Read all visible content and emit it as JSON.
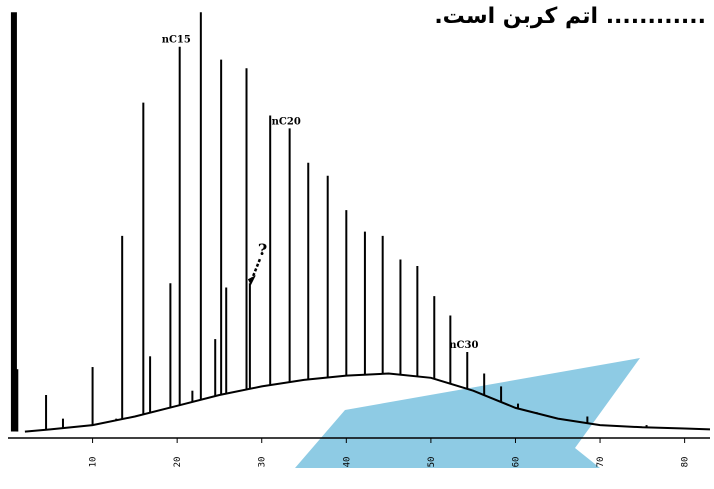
{
  "question": {
    "title": "............ اتم کربن است."
  },
  "chart_data": {
    "type": "line",
    "title": "",
    "xlabel": "",
    "ylabel": "",
    "xlim": [
      0,
      83
    ],
    "ylim": [
      0,
      100
    ],
    "x_ticks": [
      "10",
      "20",
      "30",
      "40",
      "50",
      "60",
      "70",
      "80"
    ],
    "grid": false,
    "series": [
      {
        "baseline_hump": {
          "x": [
            2,
            5,
            10,
            15,
            20,
            25,
            30,
            35,
            40,
            45,
            50,
            55,
            60,
            65,
            70,
            75,
            80,
            83
          ],
          "y": [
            1.5,
            2.0,
            3.0,
            5.0,
            7.5,
            10.0,
            12.0,
            13.5,
            14.5,
            15.0,
            14.0,
            11.0,
            7.0,
            4.5,
            3.0,
            2.5,
            2.2,
            2.0
          ]
        },
        "peaks": {
          "x": [
            0.7,
            1.1,
            4.5,
            6.5,
            10.0,
            12.8,
            13.5,
            16.0,
            16.8,
            19.2,
            20.3,
            21.8,
            22.8,
            24.5,
            25.2,
            25.8,
            28.2,
            28.6,
            31.0,
            33.3,
            35.5,
            37.8,
            40.0,
            42.2,
            44.3,
            46.4,
            48.4,
            50.4,
            52.3,
            54.3,
            56.3,
            58.3,
            60.3,
            62.5,
            68.5,
            75.5
          ],
          "y": [
            99.0,
            16.0,
            10.0,
            4.5,
            16.5,
            4.5,
            47.0,
            78.0,
            19.0,
            36.0,
            91.0,
            11.0,
            99.0,
            23.0,
            88.0,
            35.0,
            86.0,
            36.0,
            75.0,
            72.0,
            64.0,
            61.0,
            53.0,
            48.0,
            47.0,
            41.5,
            40.0,
            33.0,
            28.5,
            20.0,
            15.0,
            12.0,
            8.0,
            6.0,
            5.0,
            3.0
          ]
        }
      }
    ],
    "annotations": [
      {
        "text": "nC15",
        "x": 20.3
      },
      {
        "text": "nC20",
        "x": 33.3
      },
      {
        "text": "nC30",
        "x": 54.3
      },
      {
        "text": "?",
        "x": 28.6
      }
    ],
    "colors": {
      "line": "#000000",
      "overlay": "#8ecbe4"
    }
  }
}
